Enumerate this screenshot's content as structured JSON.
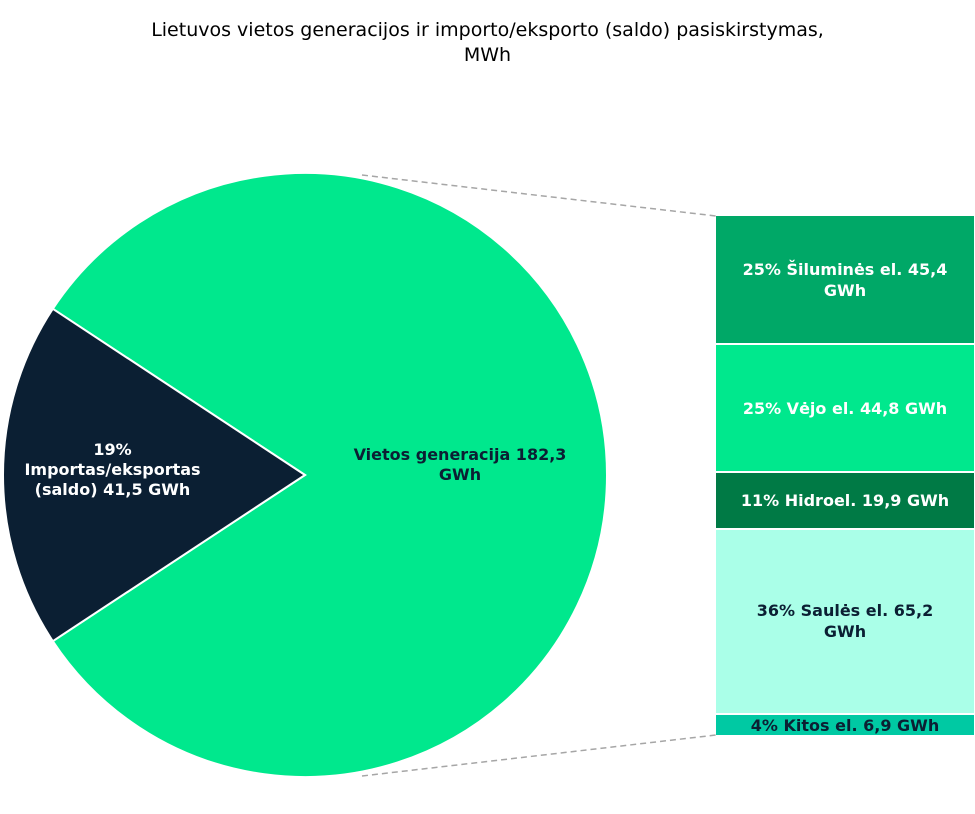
{
  "chart_data": {
    "type": "bar-of-pie",
    "title": [
      "Lietuvos vietos generacijos ir importo/eksporto (saldo) pasiskirstymas,",
      "MWh"
    ],
    "pie": [
      {
        "name": "Importas/eksportas (saldo)",
        "value_gwh": 41.5,
        "percent": 19,
        "color": "#0b1f33",
        "label_lines": [
          "19%",
          "Importas/eksportas",
          "(saldo)  41,5 GWh"
        ],
        "label_color": "#ffffff"
      },
      {
        "name": "Vietos generacija",
        "value_gwh": 182.3,
        "color": "#00e88d",
        "label_lines": [
          "Vietos generacija   182,3",
          "GWh"
        ],
        "label_color": "#0b1f33"
      }
    ],
    "breakdown": [
      {
        "name": "Šiluminės el.",
        "value_gwh": 45.4,
        "percent": 25,
        "color": "#00a867",
        "label": "25% Šiluminės el.  45,4 GWh",
        "label_color": "#ffffff"
      },
      {
        "name": "Vėjo el.",
        "value_gwh": 44.8,
        "percent": 25,
        "color": "#00e88d",
        "label": "25% Vėjo el.  44,8 GWh",
        "label_color": "#ffffff"
      },
      {
        "name": "Hidroel.",
        "value_gwh": 19.9,
        "percent": 11,
        "color": "#007a45",
        "label": "11% Hidroel.  19,9 GWh",
        "label_color": "#ffffff"
      },
      {
        "name": "Saulės el.",
        "value_gwh": 65.2,
        "percent": 36,
        "color": "#aaffe8",
        "label": "36% Saulės el.  65,2 GWh",
        "label_color": "#0b1f33"
      },
      {
        "name": "Kitos el.",
        "value_gwh": 6.9,
        "percent": 4,
        "color": "#00c9a3",
        "label": "4% Kitos el.  6,9 GWh",
        "label_color": "#0b1f33"
      }
    ]
  }
}
